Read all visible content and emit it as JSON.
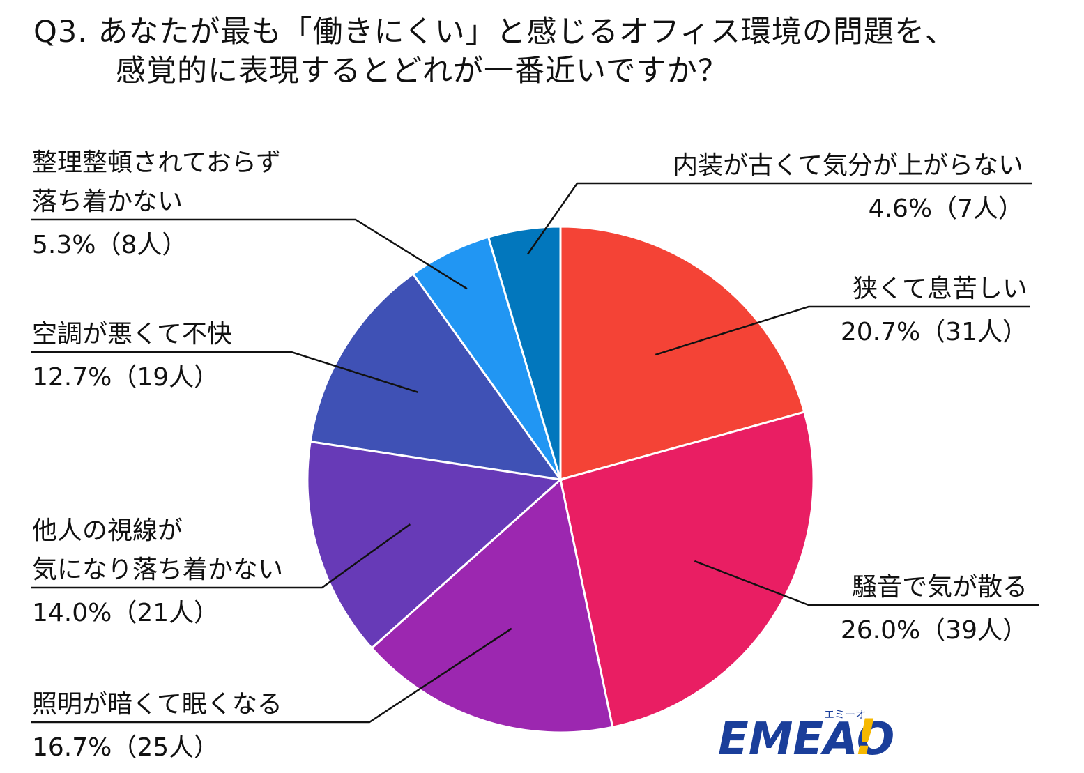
{
  "title": {
    "line1": "Q3. あなたが最も「働きにくい」と感じるオフィス環境の問題を、",
    "line2": "感覚的に表現するとどれが一番近いですか？"
  },
  "chart_data": {
    "type": "pie",
    "title": "Q3. あなたが最も「働きにくい」と感じるオフィス環境の問題を、感覚的に表現するとどれが一番近いですか？",
    "start": "12 o'clock, clockwise",
    "slices": [
      {
        "name": "狭くて息苦しい",
        "lines": [
          "狭くて息苦しい"
        ],
        "value": 20.7,
        "count": 31,
        "value_label": "20.7%（31人）",
        "color": "#F44336",
        "side": "right"
      },
      {
        "name": "騒音で気が散る",
        "lines": [
          "騒音で気が散る"
        ],
        "value": 26.0,
        "count": 39,
        "value_label": "26.0%（39人）",
        "color": "#E91E63",
        "side": "right"
      },
      {
        "name": "照明が暗くて眠くなる",
        "lines": [
          "照明が暗くて眠くなる"
        ],
        "value": 16.7,
        "count": 25,
        "value_label": "16.7%（25人）",
        "color": "#9C27B0",
        "side": "left"
      },
      {
        "name": "他人の視線が気になり落ち着かない",
        "lines": [
          "他人の視線が",
          "気になり落ち着かない"
        ],
        "value": 14.0,
        "count": 21,
        "value_label": "14.0%（21人）",
        "color": "#673AB7",
        "side": "left"
      },
      {
        "name": "空調が悪くて不快",
        "lines": [
          "空調が悪くて不快"
        ],
        "value": 12.7,
        "count": 19,
        "value_label": "12.7%（19人）",
        "color": "#3F51B5",
        "side": "left"
      },
      {
        "name": "整理整頓されておらず落ち着かない",
        "lines": [
          "整理整頓されておらず",
          "落ち着かない"
        ],
        "value": 5.3,
        "count": 8,
        "value_label": "5.3%（8人）",
        "color": "#2196F3",
        "side": "left"
      },
      {
        "name": "内装が古くて気分が上がらない",
        "lines": [
          "内装が古くて気分が上がらない"
        ],
        "value": 4.6,
        "count": 7,
        "value_label": "4.6%（7人）",
        "color": "#0277BD",
        "side": "right"
      }
    ]
  },
  "logo": {
    "text": "EMEAO",
    "exclaim": "!",
    "ruby": "エミーオ",
    "colors": {
      "main": "#1A3E9A",
      "accent": "#F6B800"
    }
  }
}
